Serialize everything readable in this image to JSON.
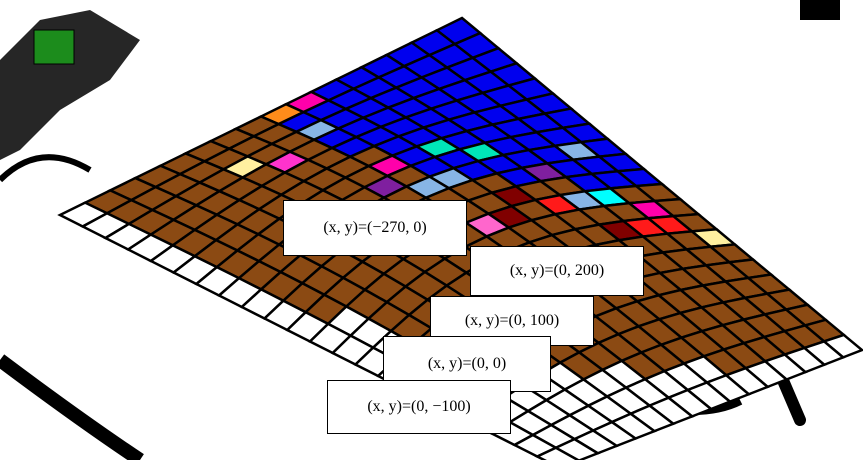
{
  "labels": [
    "(x, y)=(−270, 0)",
    "(x, y)=(0, 200)",
    "(x, y)=(0, 100)",
    "(x, y)=(0, 0)",
    "(x, y)=(0, −100)"
  ]
}
